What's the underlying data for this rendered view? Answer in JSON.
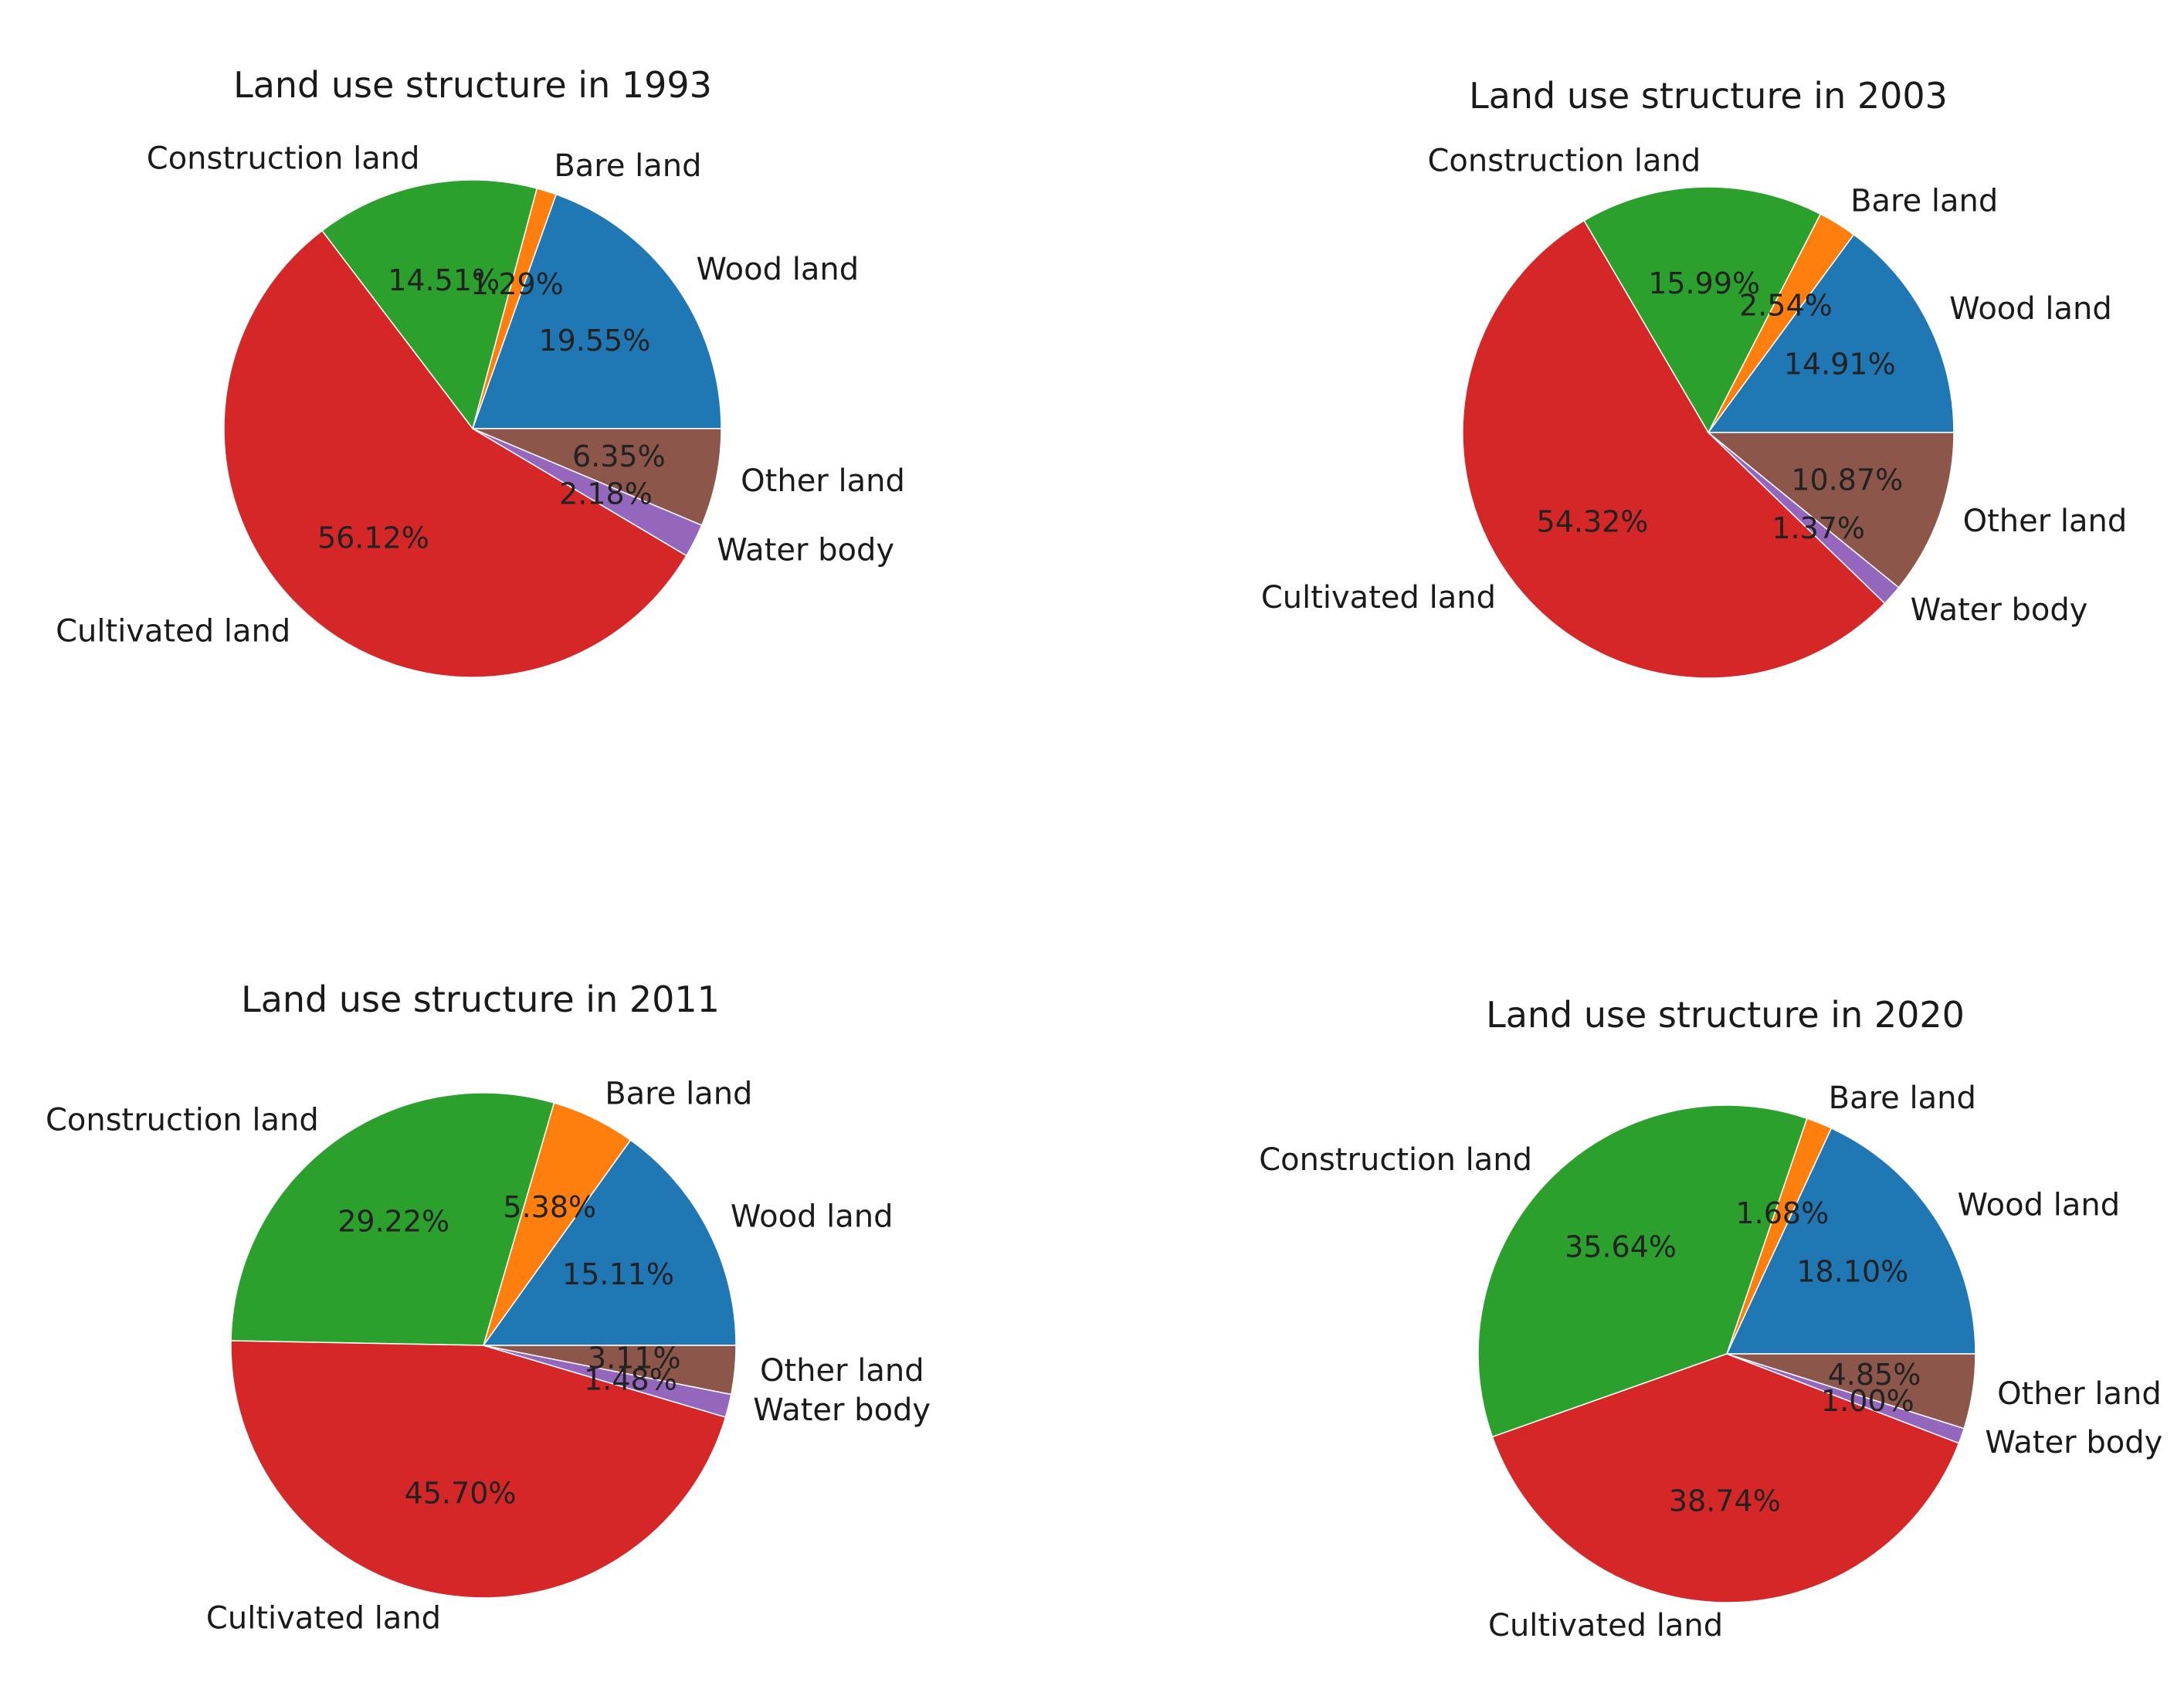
{
  "chart_data": [
    {
      "type": "pie",
      "title": "Land use structure in 1993",
      "categories": [
        "Wood land",
        "Bare land",
        "Construction land",
        "Cultivated land",
        "Water body",
        "Other land"
      ],
      "values": [
        19.55,
        1.29,
        14.51,
        56.12,
        2.18,
        6.35
      ],
      "percent_labels": [
        "19.55%",
        "1.29%",
        "14.51%",
        "56.12%",
        "2.18%",
        "6.35%"
      ],
      "colors": [
        "#1f77b4",
        "#ff7f0e",
        "#2ca02c",
        "#d62728",
        "#9467bd",
        "#8c564b"
      ],
      "start_angle_deg": 0,
      "direction": "counterclockwise"
    },
    {
      "type": "pie",
      "title": "Land use structure in 2003",
      "categories": [
        "Wood land",
        "Bare land",
        "Construction land",
        "Cultivated land",
        "Water body",
        "Other land"
      ],
      "values": [
        14.91,
        2.54,
        15.99,
        54.32,
        1.37,
        10.87
      ],
      "percent_labels": [
        "14.91%",
        "2.54%",
        "15.99%",
        "54.32%",
        "1.37%",
        "10.87%"
      ],
      "colors": [
        "#1f77b4",
        "#ff7f0e",
        "#2ca02c",
        "#d62728",
        "#9467bd",
        "#8c564b"
      ],
      "start_angle_deg": 0,
      "direction": "counterclockwise"
    },
    {
      "type": "pie",
      "title": "Land use structure in 2011",
      "categories": [
        "Wood land",
        "Bare land",
        "Construction land",
        "Cultivated land",
        "Water body",
        "Other land"
      ],
      "values": [
        15.11,
        5.38,
        29.22,
        45.7,
        1.48,
        3.11
      ],
      "percent_labels": [
        "15.11%",
        "5.38%",
        "29.22%",
        "45.70%",
        "1.48%",
        "3.11%"
      ],
      "colors": [
        "#1f77b4",
        "#ff7f0e",
        "#2ca02c",
        "#d62728",
        "#9467bd",
        "#8c564b"
      ],
      "start_angle_deg": 0,
      "direction": "counterclockwise"
    },
    {
      "type": "pie",
      "title": "Land use structure in 2020",
      "categories": [
        "Wood land",
        "Bare land",
        "Construction land",
        "Cultivated land",
        "Water body",
        "Other land"
      ],
      "values": [
        18.1,
        1.68,
        35.64,
        38.74,
        1.0,
        4.85
      ],
      "percent_labels": [
        "18.10%",
        "1.68%",
        "35.64%",
        "38.74%",
        "1.00%",
        "4.85%"
      ],
      "colors": [
        "#1f77b4",
        "#ff7f0e",
        "#2ca02c",
        "#d62728",
        "#9467bd",
        "#8c564b"
      ],
      "start_angle_deg": 0,
      "direction": "counterclockwise"
    }
  ]
}
